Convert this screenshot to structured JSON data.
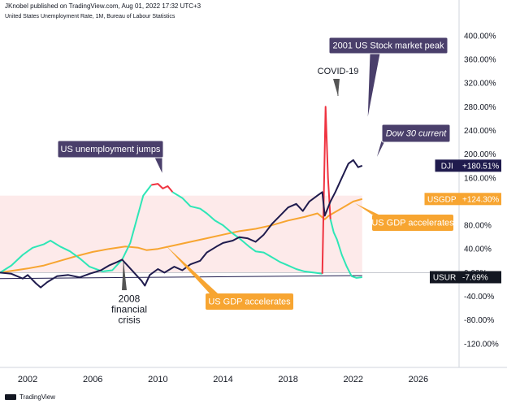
{
  "header": {
    "publisher": "JKnobel published on TradingView.com, Aug 01, 2022 17:32 UTC+3",
    "symbol_line": "United States Unemployment Rate, 1M, Bureau of Labour Statistics"
  },
  "footer": {
    "brand": "TradingView"
  },
  "colors": {
    "dji": "#1f1b4d",
    "gdp": "#f7a531",
    "unemp": "#2ee6b6",
    "unemp_spike": "#ef3340",
    "band": "#fde6e6",
    "callout_dark": "#4a3f6b"
  },
  "chart_data": {
    "type": "line",
    "xlim": [
      2000.3,
      2028.5
    ],
    "ylim": [
      -160,
      430
    ],
    "x_ticks": [
      2002,
      2006,
      2010,
      2014,
      2018,
      2022,
      2026
    ],
    "x_tick_labels": [
      "2002",
      "2006",
      "2010",
      "2014",
      "2018",
      "2022",
      "2026"
    ],
    "y_ticks": [
      -120,
      -80,
      -40,
      0,
      40,
      80,
      120,
      160,
      200,
      240,
      280,
      320,
      360,
      400
    ],
    "y_tick_labels": [
      "-120.00%",
      "-80.00%",
      "-40.00%",
      "0.00%",
      "40.00%",
      "80.00%",
      "120.00%",
      "160.00%",
      "200.00%",
      "240.00%",
      "280.00%",
      "320.00%",
      "360.00%",
      "400.00%"
    ],
    "shaded_band": {
      "from": 0,
      "to": 130
    },
    "series": [
      {
        "name": "DJI",
        "points": [
          [
            2000.3,
            0
          ],
          [
            2001,
            -2
          ],
          [
            2001.7,
            -10
          ],
          [
            2002,
            -4
          ],
          [
            2002.5,
            -18
          ],
          [
            2002.8,
            -25
          ],
          [
            2003.2,
            -16
          ],
          [
            2003.8,
            -6
          ],
          [
            2004.5,
            -4
          ],
          [
            2005.2,
            -8
          ],
          [
            2005.8,
            -2
          ],
          [
            2006.5,
            4
          ],
          [
            2007,
            12
          ],
          [
            2007.5,
            18
          ],
          [
            2007.8,
            22
          ],
          [
            2008.2,
            10
          ],
          [
            2008.6,
            -2
          ],
          [
            2009,
            -14
          ],
          [
            2009.2,
            -22
          ],
          [
            2009.5,
            -4
          ],
          [
            2010,
            6
          ],
          [
            2010.4,
            0
          ],
          [
            2011,
            10
          ],
          [
            2011.5,
            4
          ],
          [
            2012,
            14
          ],
          [
            2012.6,
            20
          ],
          [
            2013,
            34
          ],
          [
            2013.6,
            44
          ],
          [
            2014,
            50
          ],
          [
            2014.6,
            54
          ],
          [
            2015,
            60
          ],
          [
            2015.5,
            58
          ],
          [
            2016,
            52
          ],
          [
            2016.5,
            64
          ],
          [
            2017,
            82
          ],
          [
            2017.5,
            96
          ],
          [
            2018,
            110
          ],
          [
            2018.5,
            116
          ],
          [
            2018.9,
            104
          ],
          [
            2019.3,
            120
          ],
          [
            2019.8,
            130
          ],
          [
            2020.1,
            136
          ],
          [
            2020.25,
            96
          ],
          [
            2020.6,
            120
          ],
          [
            2020.9,
            136
          ],
          [
            2021.3,
            160
          ],
          [
            2021.7,
            184
          ],
          [
            2022,
            190
          ],
          [
            2022.3,
            178
          ],
          [
            2022.55,
            180.51
          ]
        ]
      },
      {
        "name": "USGDP",
        "points": [
          [
            2000.3,
            0
          ],
          [
            2001,
            3
          ],
          [
            2002,
            7
          ],
          [
            2003,
            12
          ],
          [
            2004,
            20
          ],
          [
            2005,
            28
          ],
          [
            2006,
            35
          ],
          [
            2007,
            40
          ],
          [
            2008,
            44
          ],
          [
            2008.8,
            42
          ],
          [
            2009.3,
            38
          ],
          [
            2010,
            40
          ],
          [
            2011,
            46
          ],
          [
            2012,
            52
          ],
          [
            2013,
            58
          ],
          [
            2014,
            64
          ],
          [
            2015,
            70
          ],
          [
            2016,
            74
          ],
          [
            2017,
            80
          ],
          [
            2018,
            88
          ],
          [
            2019,
            94
          ],
          [
            2019.8,
            100
          ],
          [
            2020.25,
            90
          ],
          [
            2020.5,
            96
          ],
          [
            2021,
            104
          ],
          [
            2021.5,
            112
          ],
          [
            2022,
            120
          ],
          [
            2022.55,
            124.3
          ]
        ]
      },
      {
        "name": "USUR",
        "points": [
          [
            2000.3,
            0
          ],
          [
            2001,
            12
          ],
          [
            2001.7,
            30
          ],
          [
            2002.3,
            42
          ],
          [
            2003,
            48
          ],
          [
            2003.4,
            54
          ],
          [
            2004,
            44
          ],
          [
            2004.6,
            36
          ],
          [
            2005.2,
            24
          ],
          [
            2005.8,
            10
          ],
          [
            2006.6,
            2
          ],
          [
            2007.2,
            4
          ],
          [
            2007.8,
            22
          ],
          [
            2008.3,
            50
          ],
          [
            2008.7,
            90
          ],
          [
            2009.1,
            130
          ],
          [
            2009.6,
            148
          ]
        ]
      },
      {
        "name": "USUR-peak",
        "points": [
          [
            2009.6,
            148
          ],
          [
            2010,
            150
          ],
          [
            2010.3,
            142
          ],
          [
            2010.6,
            146
          ],
          [
            2010.9,
            136
          ]
        ]
      },
      {
        "name": "USUR-recover",
        "points": [
          [
            2010.9,
            136
          ],
          [
            2011.5,
            126
          ],
          [
            2012,
            112
          ],
          [
            2012.6,
            108
          ],
          [
            2013,
            100
          ],
          [
            2013.5,
            88
          ],
          [
            2014,
            80
          ],
          [
            2014.5,
            68
          ],
          [
            2015,
            58
          ],
          [
            2015.6,
            44
          ],
          [
            2016,
            36
          ],
          [
            2016.5,
            34
          ],
          [
            2017,
            26
          ],
          [
            2017.5,
            18
          ],
          [
            2018,
            12
          ],
          [
            2018.5,
            6
          ],
          [
            2019,
            2
          ],
          [
            2019.6,
            0
          ],
          [
            2020.1,
            -2
          ]
        ]
      },
      {
        "name": "USUR-covid",
        "points": [
          [
            2020.1,
            -2
          ],
          [
            2020.2,
            140
          ],
          [
            2020.3,
            280
          ],
          [
            2020.45,
            160
          ],
          [
            2020.6,
            90
          ]
        ]
      },
      {
        "name": "USUR-tail",
        "points": [
          [
            2020.6,
            90
          ],
          [
            2020.8,
            68
          ],
          [
            2021,
            56
          ],
          [
            2021.3,
            30
          ],
          [
            2021.6,
            10
          ],
          [
            2021.9,
            -6
          ],
          [
            2022.2,
            -9
          ],
          [
            2022.55,
            -7.69
          ]
        ]
      },
      {
        "name": "baseline",
        "points": [
          [
            2000.3,
            -10
          ],
          [
            2022.55,
            -5
          ]
        ]
      }
    ],
    "price_tags": [
      {
        "symbol": "DJI",
        "value": "+180.51%",
        "at": 180.51,
        "color": "#1f1b4d"
      },
      {
        "symbol": "USGDP",
        "value": "+124.30%",
        "at": 124.3,
        "color": "#f7a531"
      },
      {
        "symbol": "USUR",
        "value": "-7.69%",
        "at": -7.69,
        "color": "#131722"
      }
    ],
    "annotations": [
      {
        "text": "2001 US Stock market peak",
        "style": "dark"
      },
      {
        "text": "COVID-19",
        "style": "plain"
      },
      {
        "text": "US unemployment jumps",
        "style": "dark"
      },
      {
        "text": "Dow 30 current",
        "style": "dark-italic"
      },
      {
        "text": "US GDP accelerates",
        "style": "orange"
      },
      {
        "text": "US GDP accelerates",
        "style": "orange"
      },
      {
        "text": "2008\nfinancial\ncrisis",
        "style": "plain-multi"
      }
    ]
  }
}
